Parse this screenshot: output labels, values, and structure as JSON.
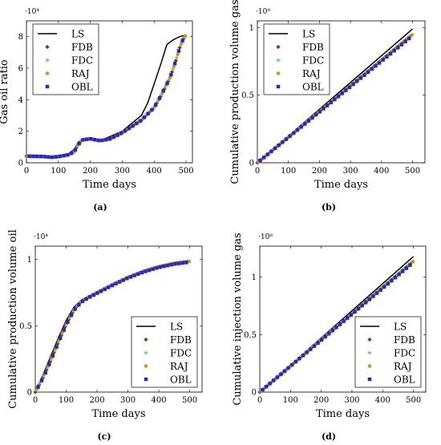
{
  "legend_labels": [
    "LS",
    "FDB",
    "FDC",
    "RAJ",
    "OBL"
  ],
  "colors": {
    "LS": "#000000",
    "FDB": "#8b2c2c",
    "FDC": "#5fd15f",
    "RAJ": "#c29a1c",
    "OBL": "#2424d6"
  },
  "chart_data": [
    {
      "type": "line",
      "caption": "(a)",
      "xlabel": "Time days",
      "ylabel": "Gas oil ratio",
      "multiplier": "·10⁴",
      "xlim": [
        0,
        520
      ],
      "ylim": [
        0,
        90000
      ],
      "xticks": [
        0,
        100,
        200,
        300,
        400,
        500
      ],
      "yticks": [
        0,
        20000,
        40000,
        60000,
        80000
      ],
      "yticklabels": [
        "0",
        "2",
        "4",
        "6",
        "8"
      ],
      "legend": "top-left",
      "series": [
        {
          "name": "LS",
          "x": [
            0,
            50,
            80,
            100,
            130,
            150,
            160,
            175,
            200,
            230,
            260,
            300,
            330,
            360,
            380,
            400,
            420,
            440,
            460,
            480,
            500
          ],
          "y": [
            4200,
            4000,
            3500,
            3900,
            5500,
            8500,
            12500,
            15200,
            15200,
            14000,
            16500,
            20000,
            25000,
            30000,
            38000,
            50000,
            62000,
            75000,
            78000,
            80000,
            81000
          ]
        },
        {
          "name": "FDB",
          "x": [
            0,
            50,
            80,
            100,
            130,
            150,
            160,
            175,
            200,
            230,
            260,
            300,
            330,
            360,
            380,
            400,
            420,
            440,
            450,
            460,
            470,
            480,
            490,
            500
          ],
          "y": [
            4200,
            4000,
            3500,
            3900,
            5000,
            7000,
            11000,
            14500,
            15200,
            14000,
            15000,
            19000,
            23000,
            27000,
            31000,
            35000,
            42000,
            50000,
            54000,
            60000,
            66000,
            73000,
            78000,
            81000
          ]
        },
        {
          "name": "FDC",
          "x": [
            0,
            50,
            80,
            100,
            130,
            150,
            160,
            175,
            200,
            230,
            260,
            300,
            330,
            360,
            380,
            400,
            420,
            440,
            450,
            460,
            470,
            480,
            490,
            500
          ],
          "y": [
            4200,
            4000,
            3500,
            3900,
            5000,
            7000,
            11000,
            14500,
            15200,
            14000,
            15000,
            19000,
            23000,
            27000,
            31000,
            35000,
            42000,
            50000,
            54000,
            60000,
            66000,
            73000,
            78000,
            81000
          ]
        },
        {
          "name": "RAJ",
          "x": [
            0,
            50,
            80,
            100,
            130,
            150,
            160,
            175,
            200,
            230,
            260,
            300,
            330,
            360,
            380,
            400,
            420,
            440,
            450,
            460,
            470,
            480,
            490,
            500
          ],
          "y": [
            4200,
            4000,
            3500,
            3900,
            5000,
            7000,
            11000,
            14500,
            15200,
            14000,
            15000,
            19000,
            23000,
            27000,
            31000,
            35000,
            42000,
            50000,
            54000,
            60000,
            66000,
            73000,
            78000,
            81000
          ]
        },
        {
          "name": "OBL",
          "x": [
            0,
            50,
            80,
            100,
            130,
            150,
            160,
            175,
            200,
            230,
            260,
            300,
            330,
            360,
            380,
            400,
            420,
            440,
            450,
            460,
            470,
            480,
            490,
            500
          ],
          "y": [
            4200,
            4000,
            3500,
            3900,
            5000,
            7000,
            11000,
            14500,
            15200,
            14000,
            15000,
            19000,
            23000,
            27000,
            31000,
            35000,
            42000,
            50000,
            54000,
            60000,
            66000,
            73000,
            78000,
            81000
          ]
        }
      ]
    },
    {
      "type": "line",
      "caption": "(b)",
      "xlabel": "Time days",
      "ylabel": "Cumulative production volume gas",
      "multiplier": "·10⁸",
      "xlim": [
        0,
        540
      ],
      "ylim": [
        0,
        105000000
      ],
      "xticks": [
        0,
        100,
        200,
        300,
        400,
        500
      ],
      "yticks": [
        0,
        50000000,
        100000000
      ],
      "yticklabels": [
        "0",
        "0.5",
        "1"
      ],
      "legend": "top-left",
      "series": [
        {
          "name": "LS",
          "x": [
            0,
            500
          ],
          "y": [
            0,
            99000000
          ]
        },
        {
          "name": "FDB",
          "x": [
            0,
            500
          ],
          "y": [
            0,
            95000000
          ]
        },
        {
          "name": "FDC",
          "x": [
            0,
            500
          ],
          "y": [
            0,
            95000000
          ]
        },
        {
          "name": "RAJ",
          "x": [
            0,
            500
          ],
          "y": [
            0,
            95000000
          ]
        },
        {
          "name": "OBL",
          "x": [
            0,
            500
          ],
          "y": [
            0,
            94000000
          ]
        }
      ]
    },
    {
      "type": "line",
      "caption": "(c)",
      "xlabel": "Time days",
      "ylabel": "Cumulative production volume oil",
      "multiplier": "·10⁴",
      "xlim": [
        0,
        540
      ],
      "ylim": [
        0,
        11000
      ],
      "xticks": [
        0,
        100,
        200,
        300,
        400,
        500
      ],
      "yticks": [
        0,
        5000,
        10000
      ],
      "yticklabels": [
        "0",
        "0.5",
        "1"
      ],
      "legend": "bottom-right",
      "series": [
        {
          "name": "LS",
          "x": [
            0,
            25,
            50,
            75,
            100,
            125,
            150,
            175,
            200,
            250,
            300,
            350,
            400,
            450,
            500
          ],
          "y": [
            0,
            1300,
            2700,
            4100,
            5400,
            6400,
            6950,
            7250,
            7550,
            8150,
            8700,
            9150,
            9500,
            9750,
            9900
          ]
        },
        {
          "name": "FDB",
          "x": [
            0,
            25,
            50,
            75,
            100,
            125,
            150,
            175,
            200,
            250,
            300,
            350,
            400,
            450,
            500
          ],
          "y": [
            0,
            1100,
            2400,
            3800,
            5100,
            6200,
            6850,
            7200,
            7500,
            8100,
            8650,
            9100,
            9450,
            9700,
            9850
          ]
        },
        {
          "name": "FDC",
          "x": [
            0,
            25,
            50,
            75,
            100,
            125,
            150,
            175,
            200,
            250,
            300,
            350,
            400,
            450,
            500
          ],
          "y": [
            0,
            1100,
            2400,
            3800,
            5100,
            6200,
            6850,
            7200,
            7500,
            8100,
            8650,
            9100,
            9450,
            9700,
            9850
          ]
        },
        {
          "name": "RAJ",
          "x": [
            0,
            25,
            50,
            75,
            100,
            125,
            150,
            175,
            200,
            250,
            300,
            350,
            400,
            450,
            500
          ],
          "y": [
            0,
            1100,
            2400,
            3800,
            5100,
            6200,
            6850,
            7200,
            7500,
            8100,
            8650,
            9100,
            9450,
            9700,
            9850
          ]
        },
        {
          "name": "OBL",
          "x": [
            0,
            25,
            50,
            75,
            100,
            125,
            150,
            175,
            200,
            250,
            300,
            350,
            400,
            450,
            500
          ],
          "y": [
            0,
            1050,
            2350,
            3750,
            5050,
            6150,
            6800,
            7150,
            7450,
            8050,
            8600,
            9050,
            9400,
            9650,
            9800
          ]
        }
      ]
    },
    {
      "type": "line",
      "caption": "(d)",
      "xlabel": "Time days",
      "ylabel": "Cumulative injection volume gas",
      "multiplier": "·10⁸",
      "xlim": [
        0,
        540
      ],
      "ylim": [
        0,
        127000000
      ],
      "xticks": [
        0,
        100,
        200,
        300,
        400,
        500
      ],
      "yticks": [
        0,
        50000000,
        100000000
      ],
      "yticklabels": [
        "0",
        "0.5",
        "1"
      ],
      "legend": "bottom-right",
      "series": [
        {
          "name": "LS",
          "x": [
            0,
            500
          ],
          "y": [
            0,
            118000000
          ]
        },
        {
          "name": "FDB",
          "x": [
            0,
            500
          ],
          "y": [
            0,
            114000000
          ]
        },
        {
          "name": "FDC",
          "x": [
            0,
            500
          ],
          "y": [
            0,
            114000000
          ]
        },
        {
          "name": "RAJ",
          "x": [
            0,
            500
          ],
          "y": [
            0,
            114000000
          ]
        },
        {
          "name": "OBL",
          "x": [
            0,
            500
          ],
          "y": [
            0,
            113000000
          ]
        }
      ]
    }
  ]
}
